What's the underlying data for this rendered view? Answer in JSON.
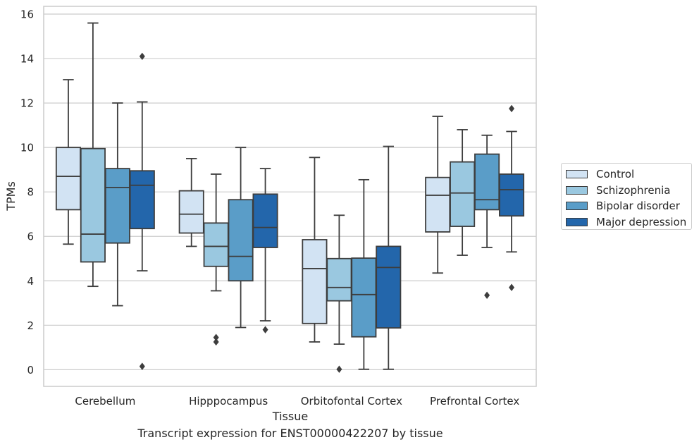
{
  "chart_data": {
    "type": "box",
    "xlabel": "Tissue",
    "ylabel": "TPMs",
    "caption": "Transcript expression for ENST00000422207 by tissue",
    "ylim": [
      -0.75,
      16.35
    ],
    "yticks": [
      0,
      2,
      4,
      6,
      8,
      10,
      12,
      14,
      16
    ],
    "grid": "horizontal",
    "legend_position": "right",
    "categories": [
      "Cerebellum",
      "Hipppocampus",
      "Orbitofontal Cortex",
      "Prefrontal Cortex"
    ],
    "series": [
      {
        "name": "Control",
        "color": "#d2e3f3",
        "boxes": [
          {
            "whisker_low": 5.65,
            "q1": 7.2,
            "median": 8.7,
            "q3": 10.0,
            "whisker_high": 13.05,
            "outliers": []
          },
          {
            "whisker_low": 5.55,
            "q1": 6.15,
            "median": 7.0,
            "q3": 8.05,
            "whisker_high": 9.5,
            "outliers": []
          },
          {
            "whisker_low": 1.25,
            "q1": 2.08,
            "median": 4.55,
            "q3": 5.85,
            "whisker_high": 9.55,
            "outliers": []
          },
          {
            "whisker_low": 4.35,
            "q1": 6.2,
            "median": 7.85,
            "q3": 8.65,
            "whisker_high": 11.4,
            "outliers": []
          }
        ]
      },
      {
        "name": "Schizophrenia",
        "color": "#9ac8e0",
        "boxes": [
          {
            "whisker_low": 3.75,
            "q1": 4.85,
            "median": 6.1,
            "q3": 9.95,
            "whisker_high": 15.6,
            "outliers": []
          },
          {
            "whisker_low": 3.55,
            "q1": 4.65,
            "median": 5.55,
            "q3": 6.6,
            "whisker_high": 8.8,
            "outliers": [
              1.45,
              1.25
            ]
          },
          {
            "whisker_low": 1.15,
            "q1": 3.1,
            "median": 3.7,
            "q3": 5.0,
            "whisker_high": 6.95,
            "outliers": [
              0.02
            ]
          },
          {
            "whisker_low": 5.15,
            "q1": 6.45,
            "median": 7.95,
            "q3": 9.35,
            "whisker_high": 10.8,
            "outliers": []
          }
        ]
      },
      {
        "name": "Bipolar disorder",
        "color": "#5a9dc8",
        "boxes": [
          {
            "whisker_low": 2.88,
            "q1": 5.7,
            "median": 8.2,
            "q3": 9.05,
            "whisker_high": 12.0,
            "outliers": []
          },
          {
            "whisker_low": 1.9,
            "q1": 4.0,
            "median": 5.1,
            "q3": 7.65,
            "whisker_high": 10.0,
            "outliers": []
          },
          {
            "whisker_low": 0.02,
            "q1": 1.48,
            "median": 3.38,
            "q3": 5.02,
            "whisker_high": 8.55,
            "outliers": []
          },
          {
            "whisker_low": 5.5,
            "q1": 7.2,
            "median": 7.65,
            "q3": 9.7,
            "whisker_high": 10.55,
            "outliers": [
              3.35
            ]
          }
        ]
      },
      {
        "name": "Major depression",
        "color": "#2366ab",
        "boxes": [
          {
            "whisker_low": 4.45,
            "q1": 6.35,
            "median": 8.3,
            "q3": 8.95,
            "whisker_high": 12.05,
            "outliers": [
              14.1,
              0.15
            ]
          },
          {
            "whisker_low": 2.2,
            "q1": 5.5,
            "median": 6.4,
            "q3": 7.9,
            "whisker_high": 9.05,
            "outliers": [
              1.8
            ]
          },
          {
            "whisker_low": 0.02,
            "q1": 1.88,
            "median": 4.6,
            "q3": 5.55,
            "whisker_high": 10.05,
            "outliers": []
          },
          {
            "whisker_low": 5.3,
            "q1": 6.92,
            "median": 8.1,
            "q3": 8.8,
            "whisker_high": 10.72,
            "outliers": [
              11.75,
              3.7
            ]
          }
        ]
      }
    ]
  }
}
